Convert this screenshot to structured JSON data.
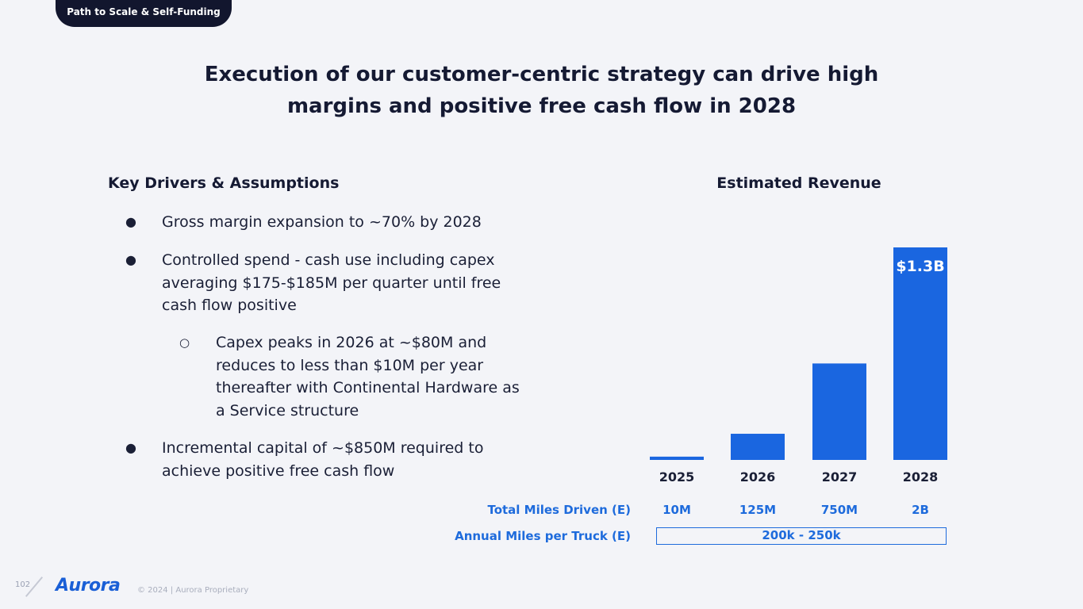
{
  "header": {
    "section_pill": "Path to Scale & Self-Funding"
  },
  "title": {
    "line1": "Execution of our customer-centric strategy can drive high",
    "line2": "margins and positive free cash flow in 2028"
  },
  "drivers": {
    "heading": "Key Drivers & Assumptions",
    "bullet1": "Gross margin expansion to ~70% by 2028",
    "bullet2_line1": "Controlled spend - cash use including capex",
    "bullet2_line2": "averaging $175-$185M per quarter until free",
    "bullet2_line3": "cash flow positive",
    "sub_bullet_line1": "Capex peaks in 2026 at ~$80M and",
    "sub_bullet_line2": "reduces to less than $10M per year",
    "sub_bullet_line3": "thereafter with Continental Hardware as",
    "sub_bullet_line4": "a Service structure",
    "bullet3_line1": "Incremental capital of ~$850M required to",
    "bullet3_line2": "achieve positive free cash flow",
    "bullet_mark": "●",
    "sub_bullet_mark": "○"
  },
  "chart_data": {
    "type": "bar",
    "title": "Estimated Revenue",
    "categories": [
      "2025",
      "2026",
      "2027",
      "2028"
    ],
    "values": [
      0.02,
      0.16,
      0.59,
      1.3
    ],
    "data_labels": [
      "",
      "",
      "",
      "$1.3B"
    ],
    "unit": "$B",
    "ylim": [
      0,
      1.3
    ],
    "bar_color": "#1a66e0",
    "grid": false
  },
  "metrics": {
    "miles_label": "Total Miles Driven (E)",
    "miles_values": [
      "10M",
      "125M",
      "750M",
      "2B"
    ],
    "per_truck_label": "Annual Miles per Truck (E)",
    "per_truck_value": "200k - 250k"
  },
  "footer": {
    "page_number": "102",
    "logo_text": "Aurora",
    "copyright": "© 2024 | Aurora Proprietary"
  },
  "colors": {
    "accent_blue": "#1e6bdc",
    "dark_navy": "#12162e",
    "background": "#f3f4f8"
  }
}
